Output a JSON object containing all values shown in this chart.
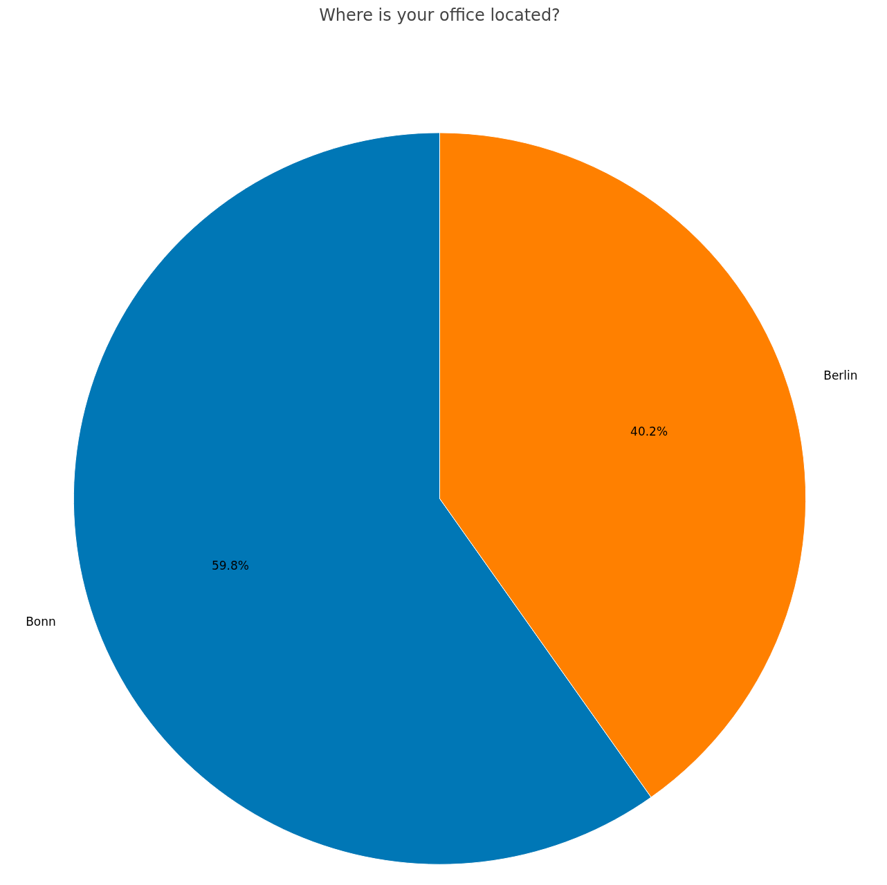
{
  "chart_data": {
    "type": "pie",
    "title": "Where is your office located?",
    "categories": [
      "Bonn",
      "Berlin"
    ],
    "values": [
      59.8,
      40.2
    ],
    "colors": [
      "#0077b6",
      "#ff8000"
    ],
    "value_labels": [
      "59.8%",
      "40.2%"
    ]
  }
}
